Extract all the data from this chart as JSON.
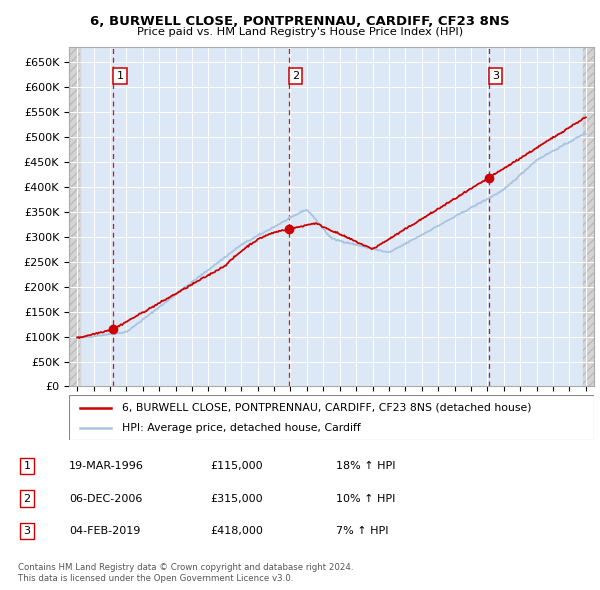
{
  "title1": "6, BURWELL CLOSE, PONTPRENNAU, CARDIFF, CF23 8NS",
  "title2": "Price paid vs. HM Land Registry's House Price Index (HPI)",
  "ylim": [
    0,
    680000
  ],
  "yticks": [
    0,
    50000,
    100000,
    150000,
    200000,
    250000,
    300000,
    350000,
    400000,
    450000,
    500000,
    550000,
    600000,
    650000
  ],
  "ytick_labels": [
    "£0",
    "£50K",
    "£100K",
    "£150K",
    "£200K",
    "£250K",
    "£300K",
    "£350K",
    "£400K",
    "£450K",
    "£500K",
    "£550K",
    "£600K",
    "£650K"
  ],
  "xstart": 1994,
  "xend": 2025,
  "sale_dates": [
    1996.21,
    2006.92,
    2019.09
  ],
  "sale_prices": [
    115000,
    315000,
    418000
  ],
  "sale_labels": [
    "1",
    "2",
    "3"
  ],
  "sale_date_str": [
    "19-MAR-1996",
    "06-DEC-2006",
    "04-FEB-2019"
  ],
  "sale_price_str": [
    "£115,000",
    "£315,000",
    "£418,000"
  ],
  "sale_hpi_str": [
    "18% ↑ HPI",
    "10% ↑ HPI",
    "7% ↑ HPI"
  ],
  "legend_label_red": "6, BURWELL CLOSE, PONTPRENNAU, CARDIFF, CF23 8NS (detached house)",
  "legend_label_blue": "HPI: Average price, detached house, Cardiff",
  "footer1": "Contains HM Land Registry data © Crown copyright and database right 2024.",
  "footer2": "This data is licensed under the Open Government Licence v3.0.",
  "hpi_color": "#aac4e0",
  "price_color": "#cc0000",
  "bg_plot": "#dce8f5",
  "grid_color": "#ffffff",
  "dashed_color": "#cc0000",
  "label_box_color": "#cc0000"
}
